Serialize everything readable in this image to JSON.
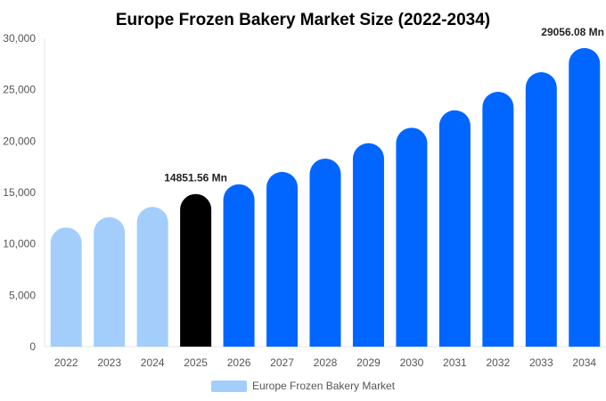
{
  "chart_data": {
    "type": "bar",
    "title": "Europe Frozen Bakery Market Size (2022-2034)",
    "xlabel": "",
    "ylabel": "",
    "categories": [
      "2022",
      "2023",
      "2024",
      "2025",
      "2026",
      "2027",
      "2028",
      "2029",
      "2030",
      "2031",
      "2032",
      "2033",
      "2034"
    ],
    "series": [
      {
        "name": "Europe Frozen Bakery Market",
        "values": [
          11600,
          12600,
          13600,
          14851.56,
          15800,
          17000,
          18300,
          19800,
          21300,
          23000,
          24800,
          26700,
          29056.08
        ]
      }
    ],
    "ylim": [
      0,
      30000
    ],
    "yticks": [
      "0",
      "5,000",
      "10,000",
      "15,000",
      "20,000",
      "25,000",
      "30,000"
    ],
    "bar_colors": {
      "historical": "#a3cefc",
      "current": "#000000",
      "forecast": "#0066ff"
    },
    "color_groups": [
      "historical",
      "historical",
      "historical",
      "current",
      "forecast",
      "forecast",
      "forecast",
      "forecast",
      "forecast",
      "forecast",
      "forecast",
      "forecast",
      "forecast"
    ],
    "data_labels": [
      {
        "category": "2025",
        "text": "14851.56 Mn"
      },
      {
        "category": "2034",
        "text": "29056.08 Mn"
      }
    ],
    "grid": false,
    "legend_position": "bottom-center"
  }
}
